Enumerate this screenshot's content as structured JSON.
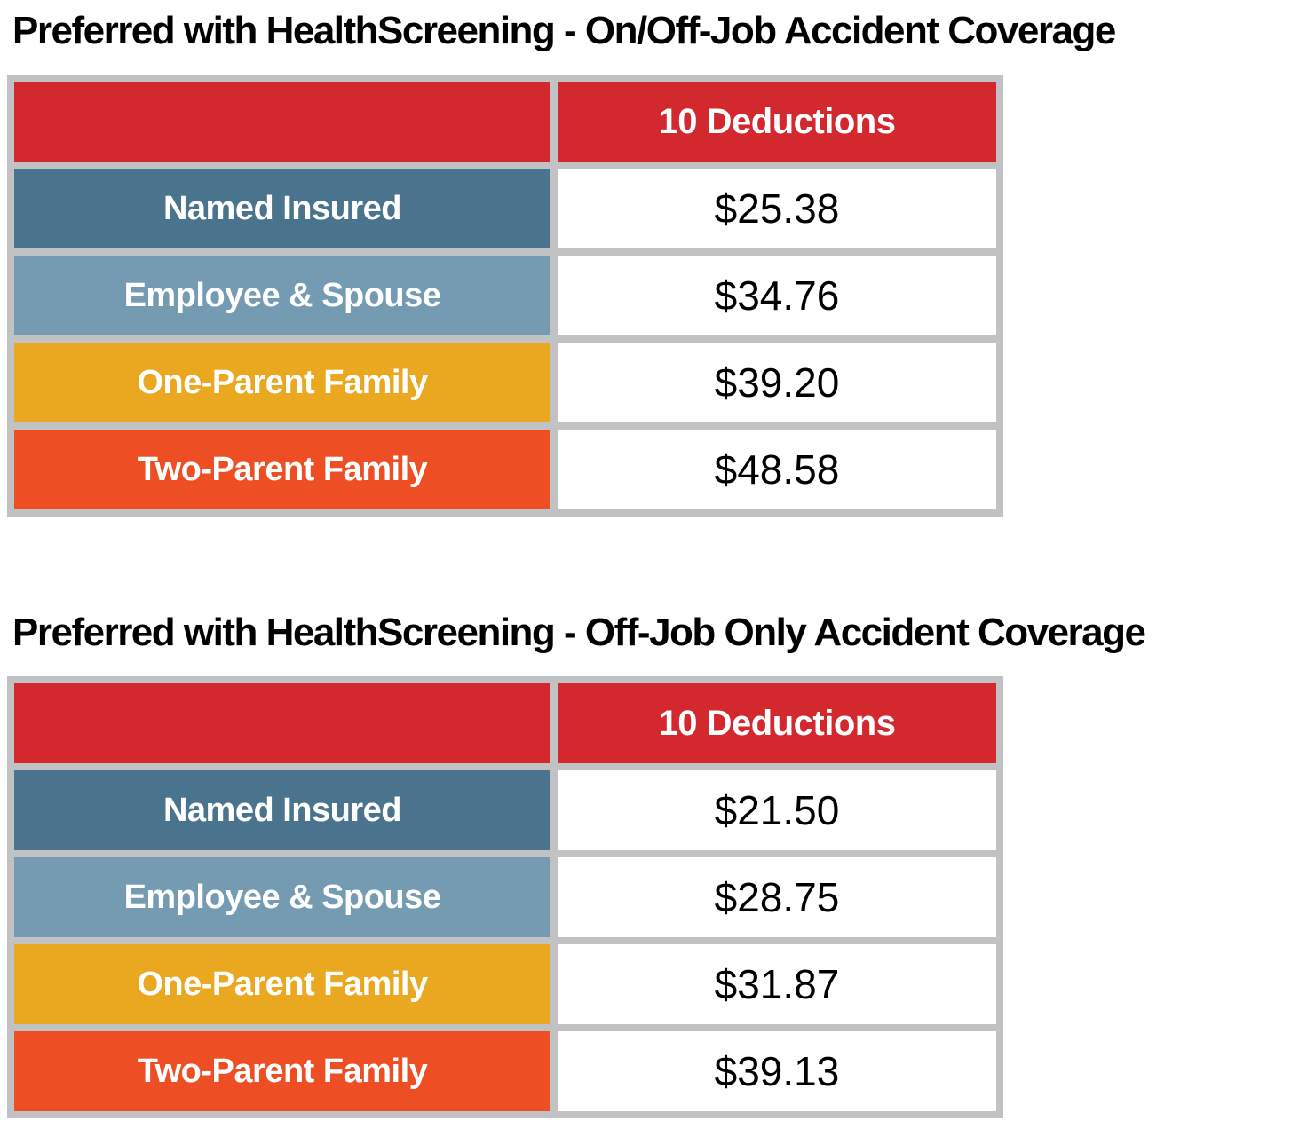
{
  "colors": {
    "header_red": "#d2282e",
    "row_named_insured_blue": "#4a748e",
    "row_employee_spouse_blue": "#749bb2",
    "row_one_parent_gold": "#e9a81f",
    "row_two_parent_orange": "#ee4e24",
    "table_frame_gray": "#c0c2c4",
    "value_text_black": "#000000",
    "row_label_text_white": "#ffffff"
  },
  "tables": [
    {
      "title": "Preferred with HealthScreening - On/Off-Job Accident Coverage",
      "column_header": "10 Deductions",
      "rows": [
        {
          "label": "Named Insured",
          "value": "$25.38",
          "color": "#4a748e"
        },
        {
          "label": "Employee & Spouse",
          "value": "$34.76",
          "color": "#749bb2"
        },
        {
          "label": "One-Parent Family",
          "value": "$39.20",
          "color": "#e9a81f"
        },
        {
          "label": "Two-Parent Family",
          "value": "$48.58",
          "color": "#ee4e24"
        }
      ]
    },
    {
      "title": "Preferred with HealthScreening - Off-Job Only Accident Coverage",
      "column_header": "10 Deductions",
      "rows": [
        {
          "label": "Named Insured",
          "value": "$21.50",
          "color": "#4a748e"
        },
        {
          "label": "Employee & Spouse",
          "value": "$28.75",
          "color": "#749bb2"
        },
        {
          "label": "One-Parent Family",
          "value": "$31.87",
          "color": "#e9a81f"
        },
        {
          "label": "Two-Parent Family",
          "value": "$39.13",
          "color": "#ee4e24"
        }
      ]
    }
  ]
}
